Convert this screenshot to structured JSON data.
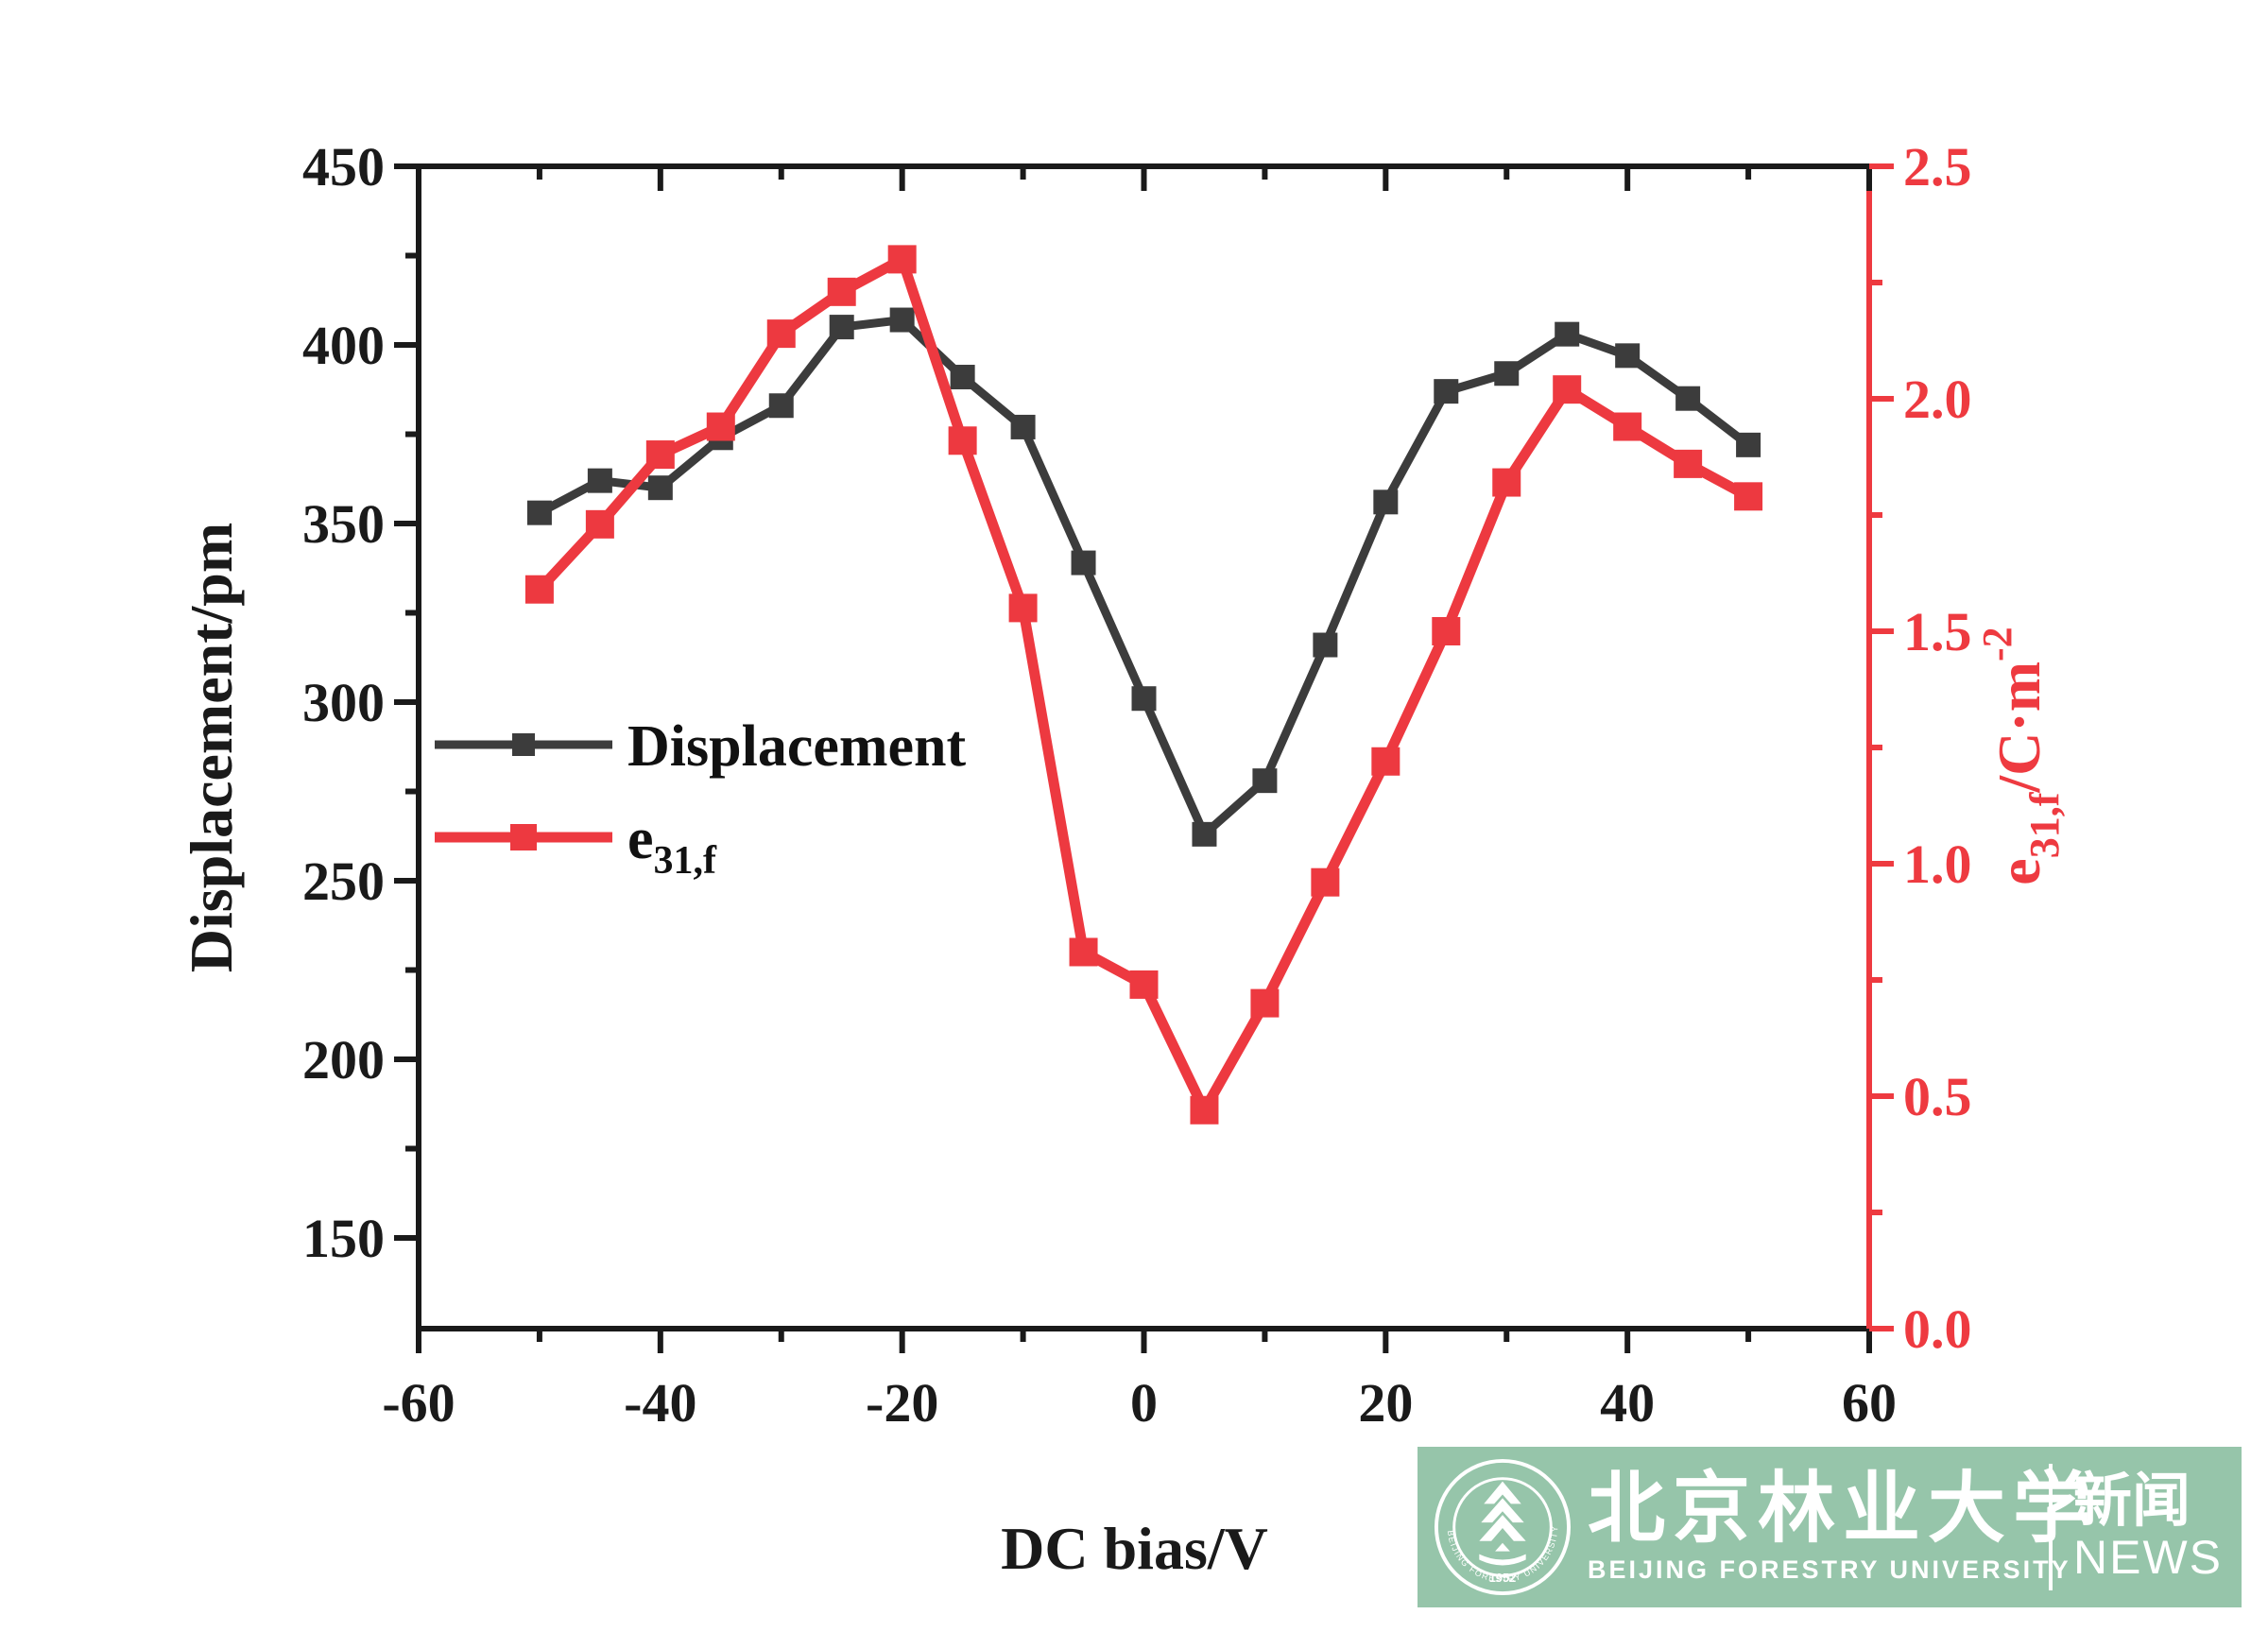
{
  "figure": {
    "x_axis": {
      "label": "DC bias/V",
      "min": -60,
      "max": 60,
      "major_ticks": [
        -60,
        -40,
        -20,
        0,
        20,
        40,
        60
      ],
      "minor_step": 10,
      "color": "#1a1a1a"
    },
    "y_left": {
      "label": "Displacement/pm",
      "min": 124.6,
      "max": 450,
      "major_ticks": [
        150,
        200,
        250,
        300,
        350,
        400,
        450
      ],
      "minor_step": 25,
      "color": "#1a1a1a"
    },
    "y_right": {
      "label_rich": [
        {
          "t": "e"
        },
        {
          "t": "31,f",
          "sub": true
        },
        {
          "t": "/C·m"
        },
        {
          "t": "-2",
          "sup": true
        }
      ],
      "min": 0.0,
      "max": 2.5,
      "major_ticks": [
        0.0,
        0.5,
        1.0,
        1.5,
        2.0,
        2.5
      ],
      "minor_step": 0.25,
      "decimals": 1,
      "color": "#ee3a40"
    }
  },
  "chart_data": {
    "type": "line",
    "x": [
      -50,
      -45,
      -40,
      -35,
      -30,
      -25,
      -20,
      -15,
      -10,
      -5,
      0,
      5,
      10,
      15,
      20,
      25,
      30,
      35,
      40,
      45,
      50
    ],
    "series": [
      {
        "name": "Displacement",
        "name_rich": [
          {
            "t": "Displacement"
          }
        ],
        "axis": "left",
        "color": "#3c3c3c",
        "marker": "square",
        "values": [
          353,
          362,
          360,
          374,
          383,
          405,
          407,
          391,
          377,
          339,
          301,
          263,
          278,
          316,
          356,
          387,
          392,
          403,
          397,
          385,
          372
        ]
      },
      {
        "name": "e31,f",
        "name_rich": [
          {
            "t": "e"
          },
          {
            "t": "31,f",
            "sub": true
          }
        ],
        "axis": "right",
        "color": "#ed3940",
        "marker": "square",
        "values": [
          1.59,
          1.73,
          1.88,
          1.94,
          2.14,
          2.23,
          2.3,
          1.91,
          1.55,
          0.81,
          0.74,
          0.47,
          0.7,
          0.96,
          1.22,
          1.5,
          1.82,
          2.02,
          1.94,
          1.86,
          1.79
        ]
      }
    ],
    "legend_position": "center-left",
    "xlabel": "DC bias/V",
    "ylabel_left": "Displacement/pm",
    "ylabel_right": "e31,f/C·m-2",
    "xlim": [
      -60,
      60
    ],
    "ylim_left": [
      124.6,
      450
    ],
    "ylim_right": [
      0.0,
      2.5
    ],
    "grid": false
  },
  "banner": {
    "bg_color": "#96c5aa",
    "university_cn": "北京林业大学",
    "university_en": "BEIJING FORESTRY UNIVERSITY",
    "news_cn": "新闻",
    "news_en": "NEWS",
    "seal_year": "1952",
    "seal_text_en": "BEIJING FORESTRY UNIVERSITY"
  }
}
